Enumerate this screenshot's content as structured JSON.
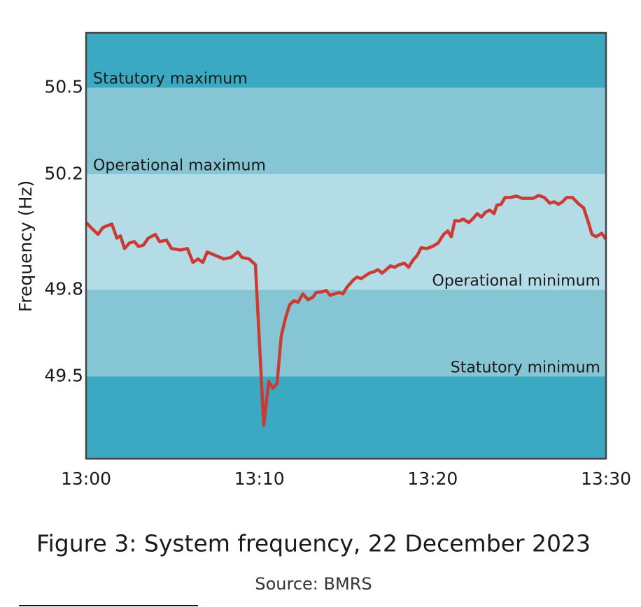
{
  "chart_data": {
    "type": "line",
    "title": "Figure 3: System frequency, 22 December 2023",
    "source": "Source: BMRS",
    "y_label": "Frequency (Hz)",
    "color": "#cc3b33",
    "band_colors": [
      "#3aa9c1",
      "#86c6d4",
      "#b4dce6",
      "#86c6d4",
      "#3aa9c1"
    ],
    "limits": [
      {
        "label": "Statutory maximum",
        "value": 50.5
      },
      {
        "label": "Operational maximum",
        "value": 50.2
      },
      {
        "label": "Operational minimum",
        "value": 49.8
      },
      {
        "label": "Statutory minimum",
        "value": 49.5
      }
    ],
    "xlim": [
      0,
      30
    ],
    "ylim": [
      49.215,
      50.69
    ],
    "xticks": [
      {
        "value": 0,
        "label": "13:00"
      },
      {
        "value": 10,
        "label": "13:10"
      },
      {
        "value": 20,
        "label": "13:20"
      },
      {
        "value": 30,
        "label": "13:30"
      }
    ],
    "yticks": [
      49.5,
      49.8,
      50.2,
      50.5
    ],
    "x": [
      0,
      0.28,
      0.69,
      0.97,
      1.49,
      1.78,
      1.98,
      2.22,
      2.5,
      2.79,
      3.03,
      3.31,
      3.59,
      4.0,
      4.24,
      4.64,
      4.93,
      5.45,
      5.85,
      6.17,
      6.46,
      6.74,
      6.99,
      7.47,
      7.95,
      8.36,
      8.76,
      9.0,
      9.41,
      9.77,
      10.25,
      10.54,
      10.78,
      11.02,
      11.26,
      11.5,
      11.75,
      11.99,
      12.23,
      12.51,
      12.8,
      13.08,
      13.28,
      13.6,
      13.85,
      14.09,
      14.33,
      14.61,
      14.82,
      15.06,
      15.42,
      15.62,
      15.87,
      16.35,
      16.63,
      16.84,
      17.08,
      17.32,
      17.56,
      17.8,
      18.05,
      18.37,
      18.61,
      18.85,
      19.1,
      19.34,
      19.66,
      19.98,
      20.31,
      20.63,
      20.87,
      21.07,
      21.28,
      21.52,
      21.76,
      22.08,
      22.33,
      22.57,
      22.81,
      23.05,
      23.29,
      23.54,
      23.7,
      23.94,
      24.18,
      24.5,
      24.83,
      25.15,
      25.8,
      26.12,
      26.44,
      26.76,
      27.01,
      27.25,
      27.49,
      27.73,
      28.06,
      28.38,
      28.71,
      28.95,
      29.19,
      29.43,
      29.75,
      30.0
    ],
    "values": [
      50.033,
      50.016,
      49.992,
      50.016,
      50.028,
      49.979,
      49.987,
      49.943,
      49.962,
      49.967,
      49.95,
      49.955,
      49.979,
      49.992,
      49.967,
      49.972,
      49.943,
      49.938,
      49.943,
      49.895,
      49.907,
      49.895,
      49.931,
      49.919,
      49.907,
      49.912,
      49.931,
      49.912,
      49.907,
      49.887,
      49.331,
      49.483,
      49.459,
      49.476,
      49.64,
      49.701,
      49.749,
      49.762,
      49.757,
      49.786,
      49.766,
      49.774,
      49.791,
      49.793,
      49.798,
      49.781,
      49.786,
      49.791,
      49.786,
      49.81,
      49.834,
      49.844,
      49.839,
      49.858,
      49.863,
      49.87,
      49.858,
      49.87,
      49.883,
      49.878,
      49.887,
      49.892,
      49.878,
      49.902,
      49.919,
      49.946,
      49.943,
      49.95,
      49.962,
      49.992,
      50.004,
      49.984,
      50.04,
      50.038,
      50.045,
      50.033,
      50.047,
      50.064,
      50.052,
      50.069,
      50.076,
      50.064,
      50.093,
      50.096,
      50.12,
      50.12,
      50.125,
      50.117,
      50.117,
      50.127,
      50.12,
      50.1,
      50.105,
      50.096,
      50.105,
      50.12,
      50.12,
      50.1,
      50.084,
      50.04,
      49.992,
      49.984,
      49.996,
      49.975
    ]
  }
}
